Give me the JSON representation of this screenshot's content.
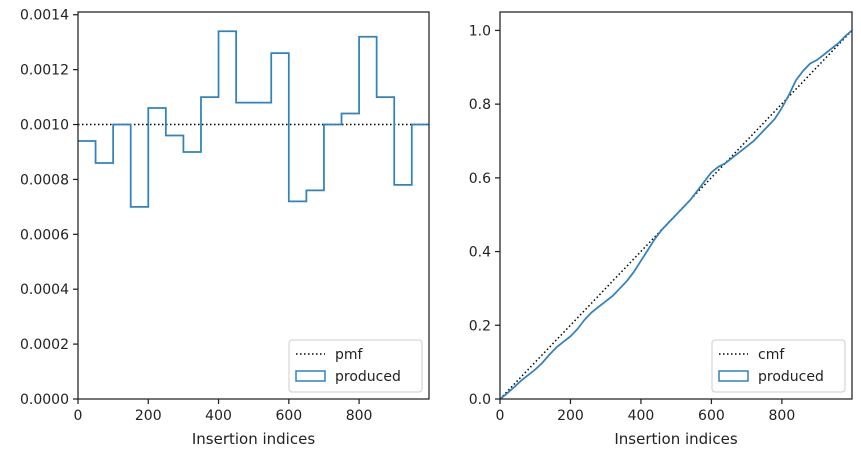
{
  "chart_data": [
    {
      "type": "line",
      "subtype": "step-histogram",
      "xlabel": "Insertion indices",
      "ylabel": "",
      "xlim": [
        0,
        999
      ],
      "ylim": [
        0,
        0.00141
      ],
      "xticks": [
        0,
        200,
        400,
        600,
        800
      ],
      "xtick_labels": [
        "0",
        "200",
        "400",
        "600",
        "800"
      ],
      "yticks": [
        0,
        0.0002,
        0.0004,
        0.0006,
        0.0008,
        0.001,
        0.0012,
        0.0014
      ],
      "ytick_labels": [
        "0.0000",
        "0.0002",
        "0.0004",
        "0.0006",
        "0.0008",
        "0.0010",
        "0.0012",
        "0.0014"
      ],
      "series": [
        {
          "name": "pmf",
          "style": "dotted",
          "color": "#000000",
          "x": [
            0,
            999
          ],
          "values": [
            0.001,
            0.001
          ]
        },
        {
          "name": "produced",
          "style": "step",
          "color": "#3182bd",
          "bin_edges": [
            0,
            50,
            100,
            150,
            200,
            250,
            300,
            350,
            400,
            450,
            500,
            550,
            600,
            650,
            700,
            750,
            800,
            850,
            900,
            950,
            999
          ],
          "values": [
            0.00094,
            0.00086,
            0.001,
            0.0007,
            0.00106,
            0.00096,
            0.0009,
            0.0011,
            0.00134,
            0.00108,
            0.00108,
            0.00126,
            0.00072,
            0.00076,
            0.001,
            0.00104,
            0.00132,
            0.0011,
            0.00078,
            0.001
          ]
        }
      ],
      "legend": {
        "position": "bottom-right",
        "entries": [
          "pmf",
          "produced"
        ]
      },
      "grid": false
    },
    {
      "type": "line",
      "xlabel": "Insertion indices",
      "ylabel": "",
      "xlim": [
        0,
        999
      ],
      "ylim": [
        0,
        1.05
      ],
      "xticks": [
        0,
        200,
        400,
        600,
        800
      ],
      "xtick_labels": [
        "0",
        "200",
        "400",
        "600",
        "800"
      ],
      "yticks": [
        0,
        0.2,
        0.4,
        0.6,
        0.8,
        1.0
      ],
      "ytick_labels": [
        "0.0",
        "0.2",
        "0.4",
        "0.6",
        "0.8",
        "1.0"
      ],
      "series": [
        {
          "name": "cmf",
          "style": "dotted",
          "color": "#000000",
          "x": [
            0,
            999
          ],
          "values": [
            0,
            1.0
          ]
        },
        {
          "name": "produced",
          "style": "solid",
          "color": "#3182bd",
          "x": [
            0,
            20,
            40,
            60,
            80,
            100,
            120,
            140,
            160,
            180,
            200,
            220,
            240,
            260,
            280,
            300,
            320,
            340,
            360,
            380,
            400,
            420,
            440,
            460,
            480,
            500,
            520,
            540,
            560,
            580,
            600,
            620,
            640,
            660,
            680,
            700,
            720,
            740,
            760,
            780,
            800,
            820,
            840,
            860,
            880,
            900,
            920,
            940,
            960,
            980,
            999
          ],
          "values": [
            0.0,
            0.015,
            0.032,
            0.05,
            0.065,
            0.08,
            0.098,
            0.12,
            0.14,
            0.155,
            0.17,
            0.19,
            0.215,
            0.235,
            0.25,
            0.265,
            0.28,
            0.3,
            0.32,
            0.345,
            0.375,
            0.405,
            0.435,
            0.46,
            0.48,
            0.5,
            0.52,
            0.54,
            0.565,
            0.59,
            0.615,
            0.63,
            0.64,
            0.655,
            0.67,
            0.685,
            0.7,
            0.72,
            0.74,
            0.76,
            0.79,
            0.825,
            0.865,
            0.89,
            0.91,
            0.92,
            0.935,
            0.95,
            0.965,
            0.985,
            1.0
          ]
        }
      ],
      "legend": {
        "position": "bottom-right",
        "entries": [
          "cmf",
          "produced"
        ]
      },
      "grid": false
    }
  ]
}
